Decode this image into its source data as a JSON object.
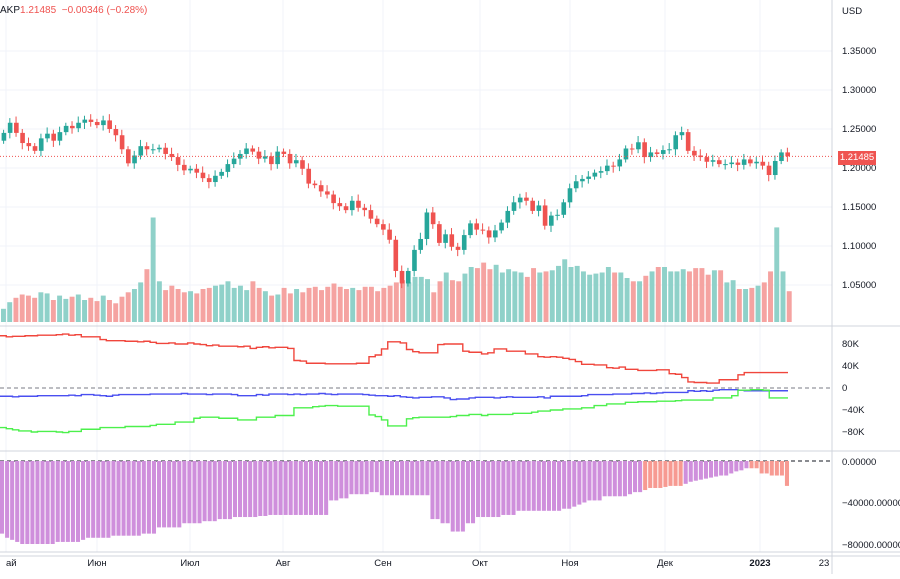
{
  "header": {
    "symbol_suffix": "AKP",
    "last": "1.21485",
    "change": "−0.00346",
    "change_pct": "(−0.28%)"
  },
  "price_axis": {
    "currency": "USD",
    "last_price_tag": "1.21485",
    "ticks": [
      "1.35000",
      "1.30000",
      "1.25000",
      "1.20000",
      "1.15000",
      "1.10000",
      "1.05000"
    ]
  },
  "pane2_axis": {
    "ticks": [
      "80K",
      "40K",
      "0",
      "−40K",
      "−80K"
    ]
  },
  "pane3_axis": {
    "ticks": [
      "0.00000",
      "−40000.00000",
      "−80000.00000"
    ]
  },
  "time_axis": {
    "ticks": [
      "ай",
      "Июн",
      "Июл",
      "Авг",
      "Сен",
      "Окт",
      "Ноя",
      "Дек",
      "2023",
      "23"
    ]
  },
  "colors": {
    "up": "#26a69a",
    "down": "#ef5350",
    "vol_up": "#8fd1c9",
    "vol_down": "#f5a3a1",
    "red_line": "#f0463c",
    "blue_line": "#4a4ff0",
    "green_line": "#4cf04c",
    "hist_purple": "#cf8fdc",
    "hist_salmon": "#f79a92"
  },
  "chart_data": [
    {
      "type": "candlestick",
      "title": "",
      "ylabel": "USD",
      "ylim": [
        1.0,
        1.4
      ],
      "last_price": 1.21485,
      "series": [
        {
          "values": [
            1.245,
            1.258,
            1.245,
            1.232,
            1.228,
            1.222,
            1.238,
            1.244,
            1.235,
            1.246,
            1.254,
            1.251,
            1.258,
            1.262,
            1.259,
            1.255,
            1.261,
            1.25,
            1.242,
            1.224,
            1.206,
            1.216,
            1.228,
            1.224,
            1.224,
            1.226,
            1.218,
            1.214,
            1.204,
            1.197,
            1.199,
            1.194,
            1.187,
            1.182,
            1.19,
            1.195,
            1.205,
            1.212,
            1.218,
            1.225,
            1.221,
            1.212,
            1.215,
            1.205,
            1.221,
            1.218,
            1.206,
            1.21,
            1.199,
            1.18,
            1.178,
            1.17,
            1.166,
            1.155,
            1.151,
            1.146,
            1.158,
            1.149,
            1.146,
            1.135,
            1.128,
            1.121,
            1.108,
            1.068,
            1.052,
            1.068,
            1.095,
            1.109,
            1.143,
            1.128,
            1.104,
            1.115,
            1.099,
            1.095,
            1.114,
            1.129,
            1.121,
            1.12,
            1.111,
            1.12,
            1.13,
            1.145,
            1.156,
            1.162,
            1.158,
            1.145,
            1.152,
            1.126,
            1.139,
            1.14,
            1.156,
            1.174,
            1.183,
            1.186,
            1.189,
            1.194,
            1.196,
            1.203,
            1.202,
            1.211,
            1.225,
            1.224,
            1.233,
            1.214,
            1.22,
            1.218,
            1.223,
            1.224,
            1.242,
            1.246,
            1.222,
            1.216,
            1.214,
            1.208,
            1.21,
            1.205,
            1.205,
            1.207,
            1.204,
            1.211,
            1.206,
            1.208,
            1.203,
            1.191,
            1.209,
            1.22,
            1.215
          ]
        }
      ]
    },
    {
      "type": "bar",
      "title": "Volume",
      "values": [
        12000,
        18000,
        22000,
        25000,
        24000,
        22000,
        27000,
        26000,
        20000,
        24000,
        21000,
        23000,
        25000,
        20000,
        22000,
        19000,
        24000,
        20000,
        17000,
        23000,
        27000,
        30000,
        36000,
        48000,
        95000,
        37000,
        29000,
        33000,
        30000,
        27000,
        28000,
        26000,
        30000,
        31000,
        33000,
        34000,
        37000,
        31000,
        33000,
        29000,
        37000,
        31000,
        28000,
        24000,
        25000,
        31000,
        26000,
        30000,
        27000,
        31000,
        32000,
        29000,
        32000,
        35000,
        32000,
        30000,
        31000,
        29000,
        32000,
        32000,
        28000,
        31000,
        33000,
        36000,
        38000,
        36000,
        41000,
        41000,
        39000,
        27000,
        37000,
        45000,
        38000,
        37000,
        44000,
        50000,
        49000,
        54000,
        48000,
        52000,
        45000,
        48000,
        46000,
        45000,
        41000,
        49000,
        45000,
        46000,
        47000,
        51000,
        57000,
        50000,
        51000,
        46000,
        43000,
        44000,
        45000,
        50000,
        45000,
        45000,
        40000,
        37000,
        37000,
        42000,
        46000,
        50000,
        50000,
        46000,
        46000,
        48000,
        46000,
        49000,
        49000,
        43000,
        47000,
        47000,
        36000,
        38000,
        30000,
        30000,
        31000,
        33000,
        36000,
        46000,
        86000,
        46000,
        28000
      ],
      "ylim": [
        0,
        100000
      ]
    },
    {
      "type": "line",
      "title": "",
      "ylim": [
        -100000,
        100000
      ],
      "yticks": [
        80000,
        40000,
        0,
        -40000,
        -80000
      ],
      "series": [
        {
          "values": [
            95000,
            93000,
            94000,
            94000,
            95000,
            95000,
            96000,
            96000,
            96000,
            97000,
            98000,
            96000,
            97000,
            93000,
            93000,
            93000,
            88000,
            86000,
            86000,
            86000,
            85000,
            85000,
            84000,
            85000,
            83000,
            81000,
            81000,
            82000,
            80000,
            80000,
            82000,
            80000,
            79000,
            77000,
            78000,
            76000,
            76000,
            76000,
            75000,
            76000,
            72000,
            74000,
            75000,
            73000,
            74000,
            74000,
            72000,
            50000,
            49000,
            45000,
            45000,
            45000,
            44000,
            44000,
            44000,
            44000,
            44000,
            45000,
            45000,
            57000,
            60000,
            71000,
            84000,
            84000,
            82000,
            70000,
            66000,
            64000,
            64000,
            64000,
            79000,
            80000,
            80000,
            80000,
            67000,
            65000,
            65000,
            62000,
            64000,
            71000,
            71000,
            67000,
            67000,
            67000,
            62000,
            62000,
            57000,
            56000,
            57000,
            56000,
            54000,
            52000,
            48000,
            43000,
            43000,
            42000,
            42000,
            37000,
            36000,
            38000,
            34000,
            34000,
            32000,
            32000,
            32000,
            33000,
            33000,
            26000,
            25000,
            19000,
            11000,
            10000,
            10000,
            9000,
            9000,
            15000,
            15000,
            15000,
            24000,
            28000,
            28000,
            28000,
            28000,
            28000,
            28000,
            28000,
            28000
          ]
        },
        {
          "values": [
            -15000,
            -15000,
            -16000,
            -15000,
            -15000,
            -15000,
            -14000,
            -14000,
            -14000,
            -14000,
            -14000,
            -13000,
            -14000,
            -12000,
            -12000,
            -13000,
            -14000,
            -15000,
            -13000,
            -12000,
            -12000,
            -12000,
            -12000,
            -12000,
            -11000,
            -11000,
            -11000,
            -11000,
            -11000,
            -10000,
            -11000,
            -11000,
            -11000,
            -12000,
            -11000,
            -11000,
            -11000,
            -12000,
            -14000,
            -14000,
            -14000,
            -12000,
            -13000,
            -11000,
            -11000,
            -11000,
            -12000,
            -11000,
            -12000,
            -11000,
            -11000,
            -10000,
            -11000,
            -12000,
            -11000,
            -11000,
            -11000,
            -11000,
            -12000,
            -13000,
            -14000,
            -14000,
            -15000,
            -14000,
            -16000,
            -17000,
            -18000,
            -17000,
            -17000,
            -16000,
            -16000,
            -18000,
            -21000,
            -20000,
            -20000,
            -18000,
            -17000,
            -17000,
            -17000,
            -18000,
            -17000,
            -16000,
            -17000,
            -17000,
            -17000,
            -17000,
            -16000,
            -18000,
            -15000,
            -15000,
            -15000,
            -15000,
            -15000,
            -14000,
            -12000,
            -12000,
            -12000,
            -12000,
            -11000,
            -11000,
            -11000,
            -10000,
            -10000,
            -9000,
            -10000,
            -9000,
            -8000,
            -8000,
            -8000,
            -8000,
            -5000,
            -6000,
            -5000,
            -6000,
            -4000,
            -3000,
            -3000,
            -3000,
            -4000,
            -5000,
            -5000,
            -5000,
            -5000,
            -5000,
            -5000,
            -5000,
            -5000
          ]
        },
        {
          "values": [
            -72000,
            -74000,
            -76000,
            -78000,
            -78000,
            -80000,
            -79000,
            -79000,
            -79000,
            -80000,
            -81000,
            -79000,
            -79000,
            -75000,
            -75000,
            -75000,
            -72000,
            -72000,
            -72000,
            -72000,
            -70000,
            -70000,
            -70000,
            -70000,
            -68000,
            -66000,
            -66000,
            -66000,
            -62000,
            -62000,
            -62000,
            -55000,
            -53000,
            -53000,
            -53000,
            -55000,
            -55000,
            -55000,
            -58000,
            -58000,
            -58000,
            -53000,
            -53000,
            -53000,
            -50000,
            -50000,
            -50000,
            -36000,
            -36000,
            -36000,
            -34000,
            -33000,
            -32000,
            -32000,
            -33000,
            -33000,
            -33000,
            -33000,
            -33000,
            -49000,
            -52000,
            -58000,
            -69000,
            -69000,
            -69000,
            -56000,
            -54000,
            -53000,
            -53000,
            -53000,
            -53000,
            -53000,
            -52000,
            -50000,
            -50000,
            -48000,
            -48000,
            -50000,
            -48000,
            -48000,
            -48000,
            -48000,
            -46000,
            -46000,
            -46000,
            -44000,
            -42000,
            -42000,
            -40000,
            -40000,
            -38000,
            -38000,
            -38000,
            -36000,
            -36000,
            -32000,
            -32000,
            -29000,
            -29000,
            -29000,
            -26000,
            -26000,
            -25000,
            -25000,
            -25000,
            -24000,
            -24000,
            -24000,
            -23000,
            -22000,
            -22000,
            -22000,
            -22000,
            -22000,
            -18000,
            -18000,
            -18000,
            -14000,
            -4000,
            -4000,
            -3000,
            -3000,
            -4000,
            -18000,
            -18000,
            -18000,
            -18000
          ]
        }
      ]
    },
    {
      "type": "bar",
      "title": "",
      "ylim": [
        -90000,
        5000
      ],
      "yticks": [
        0,
        -40000,
        -80000
      ],
      "values": [
        -70000,
        -74000,
        -76000,
        -78000,
        -80000,
        -80000,
        -80000,
        -80000,
        -80000,
        -80000,
        -80000,
        -78000,
        -78000,
        -78000,
        -78000,
        -78000,
        -76000,
        -74000,
        -74000,
        -74000,
        -74000,
        -74000,
        -72000,
        -72000,
        -72000,
        -72000,
        -72000,
        -72000,
        -70000,
        -70000,
        -70000,
        -64000,
        -64000,
        -64000,
        -64000,
        -64000,
        -60000,
        -60000,
        -60000,
        -60000,
        -58000,
        -58000,
        -58000,
        -56000,
        -56000,
        -56000,
        -54000,
        -54000,
        -54000,
        -54000,
        -54000,
        -53000,
        -53000,
        -52000,
        -52000,
        -52000,
        -52000,
        -52000,
        -52000,
        -52000,
        -52000,
        -52000,
        -52000,
        -52000,
        -52000,
        -38000,
        -38000,
        -36000,
        -36000,
        -32000,
        -32000,
        -32000,
        -32000,
        -30000,
        -30000,
        -33000,
        -33000,
        -33000,
        -33000,
        -33000,
        -33000,
        -33000,
        -33000,
        -33000,
        -33000,
        -56000,
        -56000,
        -60000,
        -60000,
        -68000,
        -68000,
        -68000,
        -60000,
        -60000,
        -54000,
        -54000,
        -54000,
        -54000,
        -54000,
        -52000,
        -52000,
        -52000,
        -48000,
        -48000,
        -48000,
        -48000,
        -48000,
        -48000,
        -48000,
        -48000,
        -48000,
        -46000,
        -46000,
        -44000,
        -42000,
        -40000,
        -38000,
        -38000,
        -38000,
        -34000,
        -34000,
        -34000,
        -34000,
        -34000,
        -32000,
        -30000,
        -30000,
        -28000,
        -26000,
        -26000,
        -26000,
        -25000,
        -24000,
        -24000,
        -24000,
        -22000,
        -20000,
        -19000,
        -18000,
        -17000,
        -16000,
        -15000,
        -14000,
        -14000,
        -12000,
        -10000,
        -9000,
        -7000,
        -7000,
        -7000,
        -12000,
        -12000,
        -14000,
        -14000,
        -14000,
        -24000
      ]
    }
  ]
}
